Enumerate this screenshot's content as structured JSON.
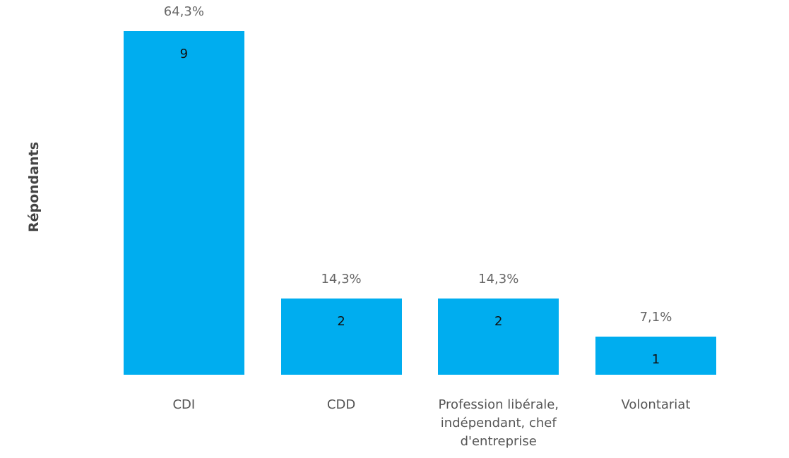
{
  "chart_data": {
    "type": "bar",
    "y_label": "Répondants",
    "categories": [
      "CDI",
      "CDD",
      "Profession libérale, indépendant, chef d'entreprise",
      "Volontariat"
    ],
    "values": [
      9,
      2,
      2,
      1
    ],
    "percent_labels": [
      "64,3%",
      "14,3%",
      "14,3%",
      "7,1%"
    ],
    "color": "#00adef",
    "ylim": [
      0,
      9
    ]
  }
}
